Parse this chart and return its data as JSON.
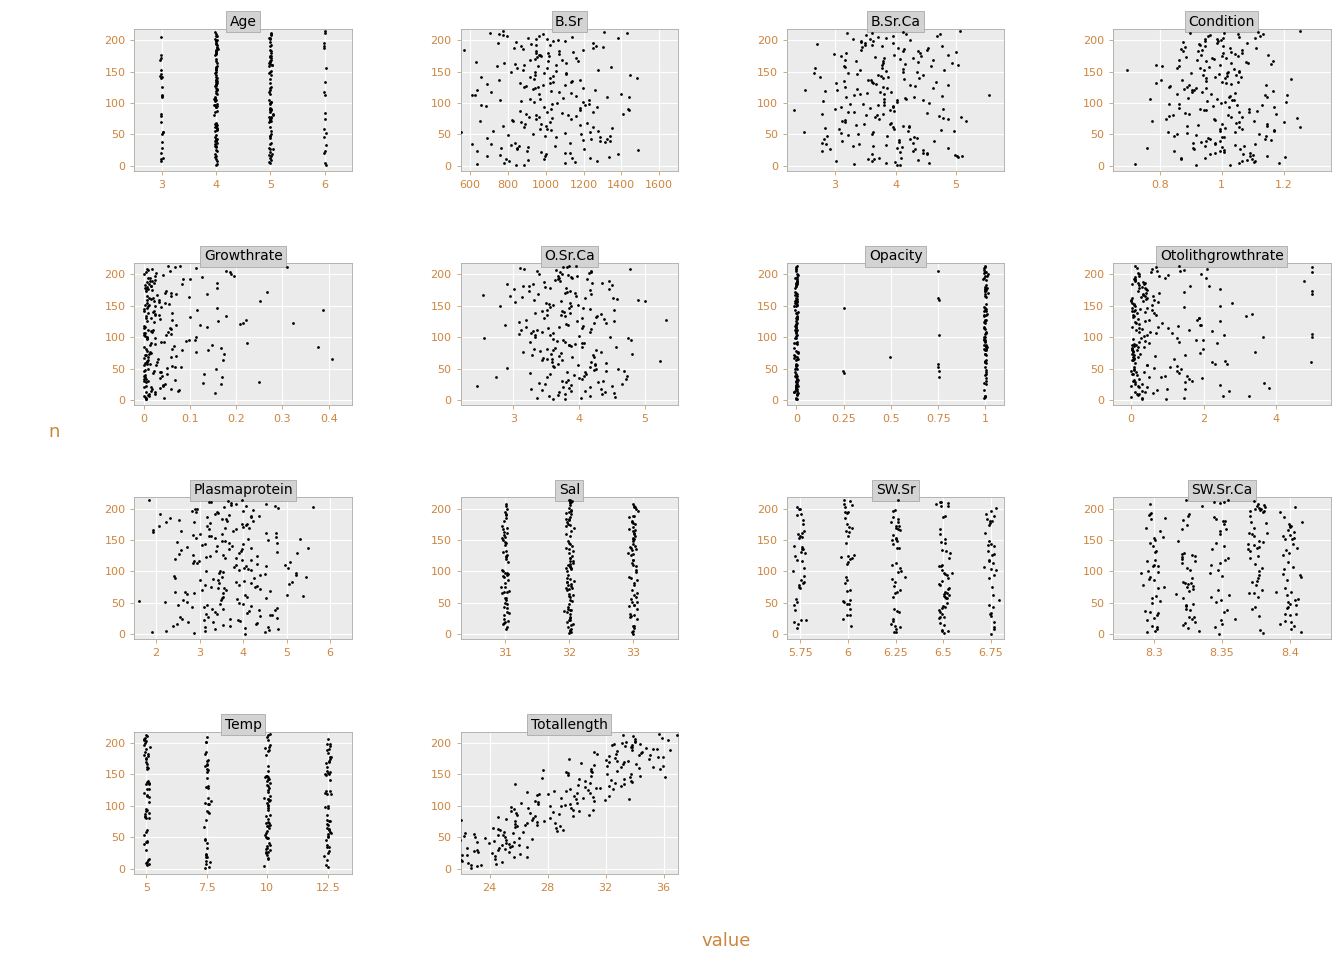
{
  "panels": [
    {
      "name": "Age",
      "xlim": [
        2.5,
        6.5
      ],
      "xticks": [
        3,
        4,
        5,
        6
      ]
    },
    {
      "name": "B.Sr",
      "xlim": [
        550,
        1700
      ],
      "xticks": [
        600,
        800,
        1000,
        1200,
        1400,
        1600
      ]
    },
    {
      "name": "B.Sr.Ca",
      "xlim": [
        2.2,
        5.8
      ],
      "xticks": [
        3,
        4,
        5
      ]
    },
    {
      "name": "Condition",
      "xlim": [
        0.65,
        1.35
      ],
      "xticks": [
        0.8,
        1.0,
        1.2
      ]
    },
    {
      "name": "Growthrate",
      "xlim": [
        -0.02,
        0.45
      ],
      "xticks": [
        0.0,
        0.1,
        0.2,
        0.3,
        0.4
      ]
    },
    {
      "name": "O.Sr.Ca",
      "xlim": [
        2.2,
        5.5
      ],
      "xticks": [
        3,
        4,
        5
      ]
    },
    {
      "name": "Opacity",
      "xlim": [
        -0.05,
        1.1
      ],
      "xticks": [
        0.0,
        0.25,
        0.5,
        0.75,
        1.0
      ]
    },
    {
      "name": "Otolithgrowthrate",
      "xlim": [
        -0.5,
        5.5
      ],
      "xticks": [
        0,
        2,
        4
      ]
    },
    {
      "name": "Plasmaprotein",
      "xlim": [
        1.5,
        6.5
      ],
      "xticks": [
        2,
        3,
        4,
        5,
        6
      ]
    },
    {
      "name": "Sal",
      "xlim": [
        30.3,
        33.7
      ],
      "xticks": [
        31,
        32,
        33
      ]
    },
    {
      "name": "SW.Sr",
      "xlim": [
        5.68,
        6.82
      ],
      "xticks": [
        5.75,
        6.0,
        6.25,
        6.5,
        6.75
      ]
    },
    {
      "name": "SW.Sr.Ca",
      "xlim": [
        8.27,
        8.43
      ],
      "xticks": [
        8.3,
        8.35,
        8.4
      ]
    },
    {
      "name": "Temp",
      "xlim": [
        4.5,
        13.5
      ],
      "xticks": [
        5.0,
        7.5,
        10.0,
        12.5
      ]
    },
    {
      "name": "Totallength",
      "xlim": [
        22,
        37
      ],
      "xticks": [
        24,
        28,
        32,
        36
      ]
    }
  ],
  "n_obs": 214,
  "ylim": [
    -8,
    218
  ],
  "yticks": [
    0,
    50,
    100,
    150,
    200
  ],
  "panel_bg": "#ebebeb",
  "grid_color": "white",
  "title_bg": "#d3d3d3",
  "dot_color": "black",
  "dot_size": 4,
  "ylabel": "n",
  "xlabel": "value",
  "font_color": "#cd853f",
  "axis_font_color": "#cd853f",
  "title_fontsize": 10,
  "axis_fontsize": 8,
  "label_fontsize": 13
}
